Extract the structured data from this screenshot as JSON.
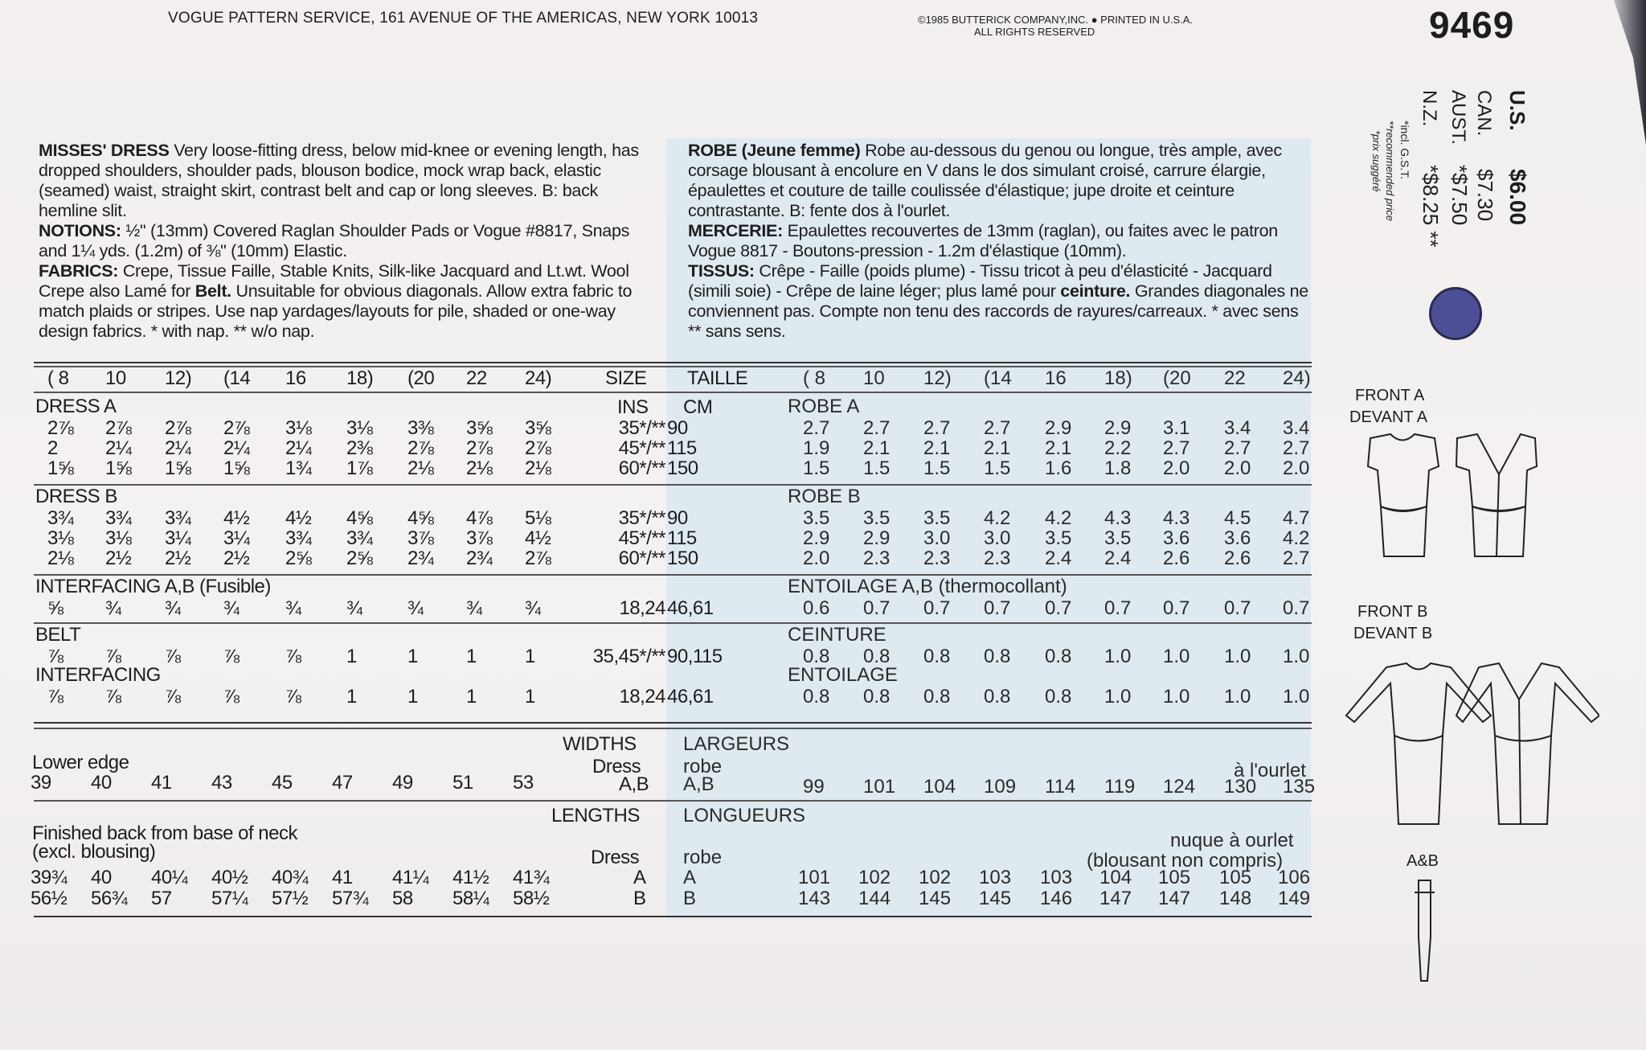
{
  "header": {
    "address": "VOGUE PATTERN SERVICE, 161 AVENUE OF THE AMERICAS, NEW YORK 10013",
    "copyright": "©1985 BUTTERICK COMPANY,INC. ● PRINTED IN U.S.A.",
    "rights": "ALL RIGHTS RESERVED",
    "pattern_number": "9469"
  },
  "prices": {
    "us_label": "U.S.",
    "us_price": "$6.00",
    "can_label": "CAN.",
    "can_price": "$7.30",
    "aust_label": "AUST.",
    "aust_price": "*$7.50",
    "nz_label": "N.Z.",
    "nz_price": "*$8.25 **",
    "note1": "*incl. G.S.T.",
    "note2": "**recommended price",
    "note3": "*prix suggéré",
    "circle_color": "#4d4f96"
  },
  "description_en": {
    "title": "MISSES' DRESS",
    "text": " Very loose-fitting dress, below mid-knee or evening length, has dropped shoulders, shoulder pads, blouson bodice, mock wrap back, elastic (seamed) waist, straight skirt, contrast belt and cap or long sleeves. B: back hemline slit.",
    "notions_label": "NOTIONS:",
    "notions": " ½\" (13mm) Covered Raglan Shoulder Pads or Vogue #8817, Snaps and 1¼ yds. (1.2m) of ⅜\" (10mm) Elastic.",
    "fabrics_label": "FABRICS:",
    "fabrics_a": " Crepe, Tissue Faille, Stable Knits, Silk-like Jacquard and Lt.wt. Wool Crepe also Lamé for ",
    "fabrics_belt": "Belt.",
    "fabrics_b": " Unsuitable for obvious diagonals. Allow extra fabric to match plaids or stripes. Use nap yardages/layouts for pile, shaded or one-way design fabrics. * with nap. ** w/o nap."
  },
  "description_fr": {
    "title": "ROBE (Jeune femme)",
    "text": " Robe au-dessous du genou ou longue, très ample, avec corsage blousant à encolure en V dans le dos simulant croisé, carrure élargie, épaulettes et couture de taille coulissée d'élastique; jupe droite et ceinture contrastante. B: fente dos à l'ourlet.",
    "mercerie_label": "MERCERIE:",
    "mercerie": " Epaulettes recouvertes de 13mm (raglan), ou faites avec le patron Vogue 8817 - Boutons-pression - 1.2m d'élastique (10mm).",
    "tissus_label": "TISSUS:",
    "tissus_a": " Crêpe - Faille (poids plume) - Tissu tricot à peu d'élasticité - Jacquard (simili soie) - Crêpe de laine léger; plus lamé pour ",
    "tissus_belt": "ceinture.",
    "tissus_b": " Grandes diagonales ne conviennent pas. Compte non tenu des raccords de rayures/carreaux. * avec sens ** sans sens."
  },
  "table": {
    "sizes": [
      "( 8",
      "10",
      "12)",
      "(14",
      "16",
      "18)",
      "(20",
      "22",
      "24)"
    ],
    "size_label": "SIZE",
    "taille_label": "TAILLE",
    "ins_label": "INS",
    "cm_label": "CM",
    "sections": [
      {
        "label": "DRESS A",
        "label_fr": "ROBE A",
        "rows": [
          {
            "imp": [
              "2⅞",
              "2⅞",
              "2⅞",
              "2⅞",
              "3⅛",
              "3⅛",
              "3⅜",
              "3⅝",
              "3⅝"
            ],
            "ins": "35*/**",
            "cm": "90",
            "met": [
              "2.7",
              "2.7",
              "2.7",
              "2.7",
              "2.9",
              "2.9",
              "3.1",
              "3.4",
              "3.4"
            ]
          },
          {
            "imp": [
              "2",
              "2¼",
              "2¼",
              "2¼",
              "2¼",
              "2⅜",
              "2⅞",
              "2⅞",
              "2⅞"
            ],
            "ins": "45*/**",
            "cm": "115",
            "met": [
              "1.9",
              "2.1",
              "2.1",
              "2.1",
              "2.1",
              "2.2",
              "2.7",
              "2.7",
              "2.7"
            ]
          },
          {
            "imp": [
              "1⅝",
              "1⅝",
              "1⅝",
              "1⅝",
              "1¾",
              "1⅞",
              "2⅛",
              "2⅛",
              "2⅛"
            ],
            "ins": "60*/**",
            "cm": "150",
            "met": [
              "1.5",
              "1.5",
              "1.5",
              "1.5",
              "1.6",
              "1.8",
              "2.0",
              "2.0",
              "2.0"
            ]
          }
        ]
      },
      {
        "label": "DRESS B",
        "label_fr": "ROBE B",
        "rows": [
          {
            "imp": [
              "3¾",
              "3¾",
              "3¾",
              "4½",
              "4½",
              "4⅝",
              "4⅝",
              "4⅞",
              "5⅛"
            ],
            "ins": "35*/**",
            "cm": "90",
            "met": [
              "3.5",
              "3.5",
              "3.5",
              "4.2",
              "4.2",
              "4.3",
              "4.3",
              "4.5",
              "4.7"
            ]
          },
          {
            "imp": [
              "3⅛",
              "3⅛",
              "3¼",
              "3¼",
              "3¾",
              "3¾",
              "3⅞",
              "3⅞",
              "4½"
            ],
            "ins": "45*/**",
            "cm": "115",
            "met": [
              "2.9",
              "2.9",
              "3.0",
              "3.0",
              "3.5",
              "3.5",
              "3.6",
              "3.6",
              "4.2"
            ]
          },
          {
            "imp": [
              "2⅛",
              "2½",
              "2½",
              "2½",
              "2⅝",
              "2⅝",
              "2¾",
              "2¾",
              "2⅞"
            ],
            "ins": "60*/**",
            "cm": "150",
            "met": [
              "2.0",
              "2.3",
              "2.3",
              "2.3",
              "2.4",
              "2.4",
              "2.6",
              "2.6",
              "2.7"
            ]
          }
        ]
      },
      {
        "label": "INTERFACING A,B (Fusible)",
        "label_fr": "ENTOILAGE A,B (thermocollant)",
        "rows": [
          {
            "imp": [
              "⅝",
              "¾",
              "¾",
              "¾",
              "¾",
              "¾",
              "¾",
              "¾",
              "¾"
            ],
            "ins": "18,24",
            "cm": "46,61",
            "met": [
              "0.6",
              "0.7",
              "0.7",
              "0.7",
              "0.7",
              "0.7",
              "0.7",
              "0.7",
              "0.7"
            ]
          }
        ]
      },
      {
        "label": "BELT",
        "label_fr": "CEINTURE",
        "rows": [
          {
            "imp": [
              "⅞",
              "⅞",
              "⅞",
              "⅞",
              "⅞",
              "1",
              "1",
              "1",
              "1"
            ],
            "ins": "35,45*/**",
            "cm": "90,115",
            "met": [
              "0.8",
              "0.8",
              "0.8",
              "0.8",
              "0.8",
              "1.0",
              "1.0",
              "1.0",
              "1.0"
            ]
          }
        ]
      },
      {
        "label": "INTERFACING",
        "label_fr": "ENTOILAGE",
        "rows": [
          {
            "imp": [
              "⅞",
              "⅞",
              "⅞",
              "⅞",
              "⅞",
              "1",
              "1",
              "1",
              "1"
            ],
            "ins": "18,24",
            "cm": "46,61",
            "met": [
              "0.8",
              "0.8",
              "0.8",
              "0.8",
              "0.8",
              "1.0",
              "1.0",
              "1.0",
              "1.0"
            ]
          }
        ]
      }
    ]
  },
  "widths": {
    "title": "WIDTHS",
    "title_fr": "LARGEURS",
    "label": "Lower edge",
    "label_fr": "à l'ourlet",
    "dress": "Dress",
    "robe": "robe",
    "ab": "A,B",
    "ab_fr": "A,B",
    "imp": [
      "39",
      "40",
      "41",
      "43",
      "45",
      "47",
      "49",
      "51",
      "53"
    ],
    "met": [
      "99",
      "101",
      "104",
      "109",
      "114",
      "119",
      "124",
      "130",
      "135"
    ]
  },
  "lengths": {
    "title": "LENGTHS",
    "title_fr": "LONGUEURS",
    "label1": "Finished back from base of neck",
    "label2": "(excl. blousing)",
    "label_fr1": "nuque à ourlet",
    "label_fr2": "(blousant non compris)",
    "dress": "Dress",
    "robe": "robe",
    "rows": [
      {
        "view": "A",
        "imp": [
          "39¾",
          "40",
          "40¼",
          "40½",
          "40¾",
          "41",
          "41¼",
          "41½",
          "41¾"
        ],
        "met": [
          "101",
          "102",
          "102",
          "103",
          "103",
          "104",
          "105",
          "105",
          "106"
        ]
      },
      {
        "view": "B",
        "imp": [
          "56½",
          "56¾",
          "57",
          "57¼",
          "57½",
          "57¾",
          "58",
          "58¼",
          "58½"
        ],
        "met": [
          "143",
          "144",
          "145",
          "145",
          "146",
          "147",
          "147",
          "148",
          "149"
        ]
      }
    ]
  },
  "drawings": {
    "front_a": "FRONT A",
    "devant_a": "DEVANT A",
    "front_b": "FRONT B",
    "devant_b": "DEVANT B",
    "ab": "A&B"
  }
}
